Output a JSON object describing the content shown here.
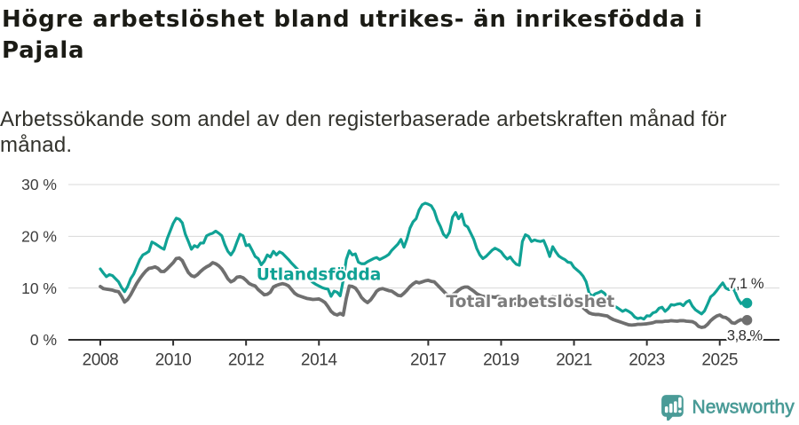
{
  "title": "Högre arbetslöshet bland utrikes- än inrikesfödda i Pajala",
  "subtitle": "Arbetssökande som andel av den registerbaserade arbetskraften månad för månad.",
  "branding": {
    "name": "Newsworthy",
    "icon": "newsworthy-speech-bubble-bar-chart-icon",
    "color": "#4a9b97"
  },
  "colors": {
    "series_foreign_born": "#10a295",
    "series_total": "#6f6f6f",
    "series_total_label": "#7c7c7c",
    "grid": "#d8d8d8",
    "axis": "#2f2f2f",
    "tick_text": "#3d3d3d",
    "annotation_text": "#2d2d2d"
  },
  "chart_data": {
    "type": "line",
    "title": "Högre arbetslöshet bland utrikes- än inrikesfödda i Pajala",
    "xlabel": "",
    "ylabel": "",
    "x_start": "2008-01",
    "x_end": "2025-10",
    "x_tick_labels": [
      "2008",
      "2010",
      "2012",
      "2014",
      "2017",
      "2019",
      "2021",
      "2023",
      "2025"
    ],
    "x_tick_years": [
      2008,
      2010,
      2012,
      2014,
      2017,
      2019,
      2021,
      2023,
      2025
    ],
    "y_tick_labels": [
      "0 %",
      "10 %",
      "20 %",
      "30 %"
    ],
    "y_tick_values": [
      0,
      10,
      20,
      30
    ],
    "ylim": [
      0,
      30
    ],
    "grid": "horizontal",
    "legend_position": "inline-labels",
    "series": [
      {
        "name": "Total arbetslöshet",
        "end_label": "3,8 %",
        "values": [
          10.3,
          9.9,
          9.8,
          9.7,
          9.6,
          9.4,
          9.3,
          8.4,
          7.3,
          7.8,
          8.7,
          9.8,
          10.9,
          11.8,
          12.6,
          13.3,
          13.8,
          13.9,
          14.1,
          13.8,
          13.2,
          13.2,
          13.7,
          14.3,
          14.9,
          15.7,
          15.8,
          15.3,
          14.1,
          13.0,
          12.4,
          12.2,
          12.6,
          13.2,
          13.7,
          14.1,
          14.4,
          14.9,
          14.7,
          14.3,
          13.7,
          12.8,
          11.8,
          11.2,
          11.5,
          12.1,
          12.2,
          12.0,
          11.5,
          10.9,
          10.6,
          10.4,
          9.7,
          9.2,
          8.7,
          8.8,
          9.2,
          10.2,
          10.5,
          10.7,
          10.85,
          10.7,
          10.4,
          9.7,
          9.0,
          8.6,
          8.4,
          8.2,
          8.0,
          7.9,
          7.8,
          7.85,
          7.9,
          7.6,
          7.2,
          6.4,
          5.5,
          5.0,
          4.8,
          5.1,
          4.8,
          8.0,
          10.4,
          10.3,
          10.0,
          9.2,
          8.2,
          7.6,
          7.2,
          7.7,
          8.5,
          9.4,
          9.8,
          9.9,
          9.7,
          9.5,
          9.4,
          9.0,
          8.6,
          8.5,
          9.0,
          9.6,
          10.3,
          10.8,
          11.2,
          11.0,
          11.2,
          11.4,
          11.5,
          11.3,
          11.2,
          10.6,
          10.0,
          9.4,
          8.8,
          8.6,
          8.7,
          9.1,
          9.6,
          10.0,
          10.2,
          10.2,
          9.8,
          9.4,
          8.9,
          8.6,
          8.4,
          8.3,
          8.5,
          8.3,
          8.2,
          8.4,
          8.2,
          7.9,
          7.6,
          7.3,
          7.0,
          6.9,
          6.7,
          6.6,
          6.8,
          7.0,
          7.1,
          7.3,
          7.2,
          7.1,
          7.4,
          7.9,
          8.1,
          8.3,
          8.2,
          8.0,
          7.8,
          7.7,
          7.6,
          7.7,
          7.4,
          7.2,
          6.8,
          6.2,
          5.7,
          5.2,
          5.0,
          4.9,
          4.9,
          4.8,
          4.7,
          4.6,
          4.2,
          3.9,
          3.7,
          3.5,
          3.3,
          3.1,
          2.9,
          2.85,
          2.9,
          3.0,
          3.0,
          3.05,
          3.1,
          3.2,
          3.3,
          3.5,
          3.5,
          3.5,
          3.6,
          3.6,
          3.7,
          3.65,
          3.6,
          3.7,
          3.7,
          3.6,
          3.55,
          3.5,
          3.2,
          2.6,
          2.4,
          2.5,
          3.0,
          3.7,
          4.2,
          4.6,
          4.8,
          4.4,
          4.3,
          3.9,
          3.3,
          3.2,
          3.6,
          3.9,
          3.7,
          3.8
        ]
      },
      {
        "name": "Utlandsfödda",
        "end_label": "7,1 %",
        "values": [
          13.7,
          12.9,
          12.2,
          12.6,
          12.4,
          11.8,
          11.2,
          10.1,
          9.3,
          10.3,
          11.8,
          12.7,
          14.1,
          15.5,
          16.4,
          16.7,
          17.1,
          18.9,
          18.6,
          18.2,
          17.8,
          17.5,
          19.5,
          21.0,
          22.5,
          23.5,
          23.3,
          22.6,
          20.4,
          19.0,
          17.5,
          18.2,
          17.9,
          18.7,
          18.7,
          20.1,
          20.4,
          20.6,
          21.0,
          20.6,
          20.1,
          18.4,
          17.1,
          16.4,
          17.3,
          18.9,
          20.4,
          20.1,
          18.2,
          18.4,
          17.3,
          16.1,
          15.7,
          14.5,
          15.2,
          16.4,
          16.0,
          17.1,
          16.4,
          17.0,
          16.7,
          16.1,
          15.5,
          14.8,
          14.2,
          13.6,
          13.1,
          12.6,
          12.1,
          11.6,
          11.1,
          10.7,
          10.4,
          10.1,
          9.9,
          9.8,
          8.4,
          9.4,
          9.2,
          8.5,
          11.5,
          15.5,
          17.2,
          16.4,
          16.6,
          15.0,
          14.7,
          14.7,
          15.1,
          15.4,
          15.7,
          15.9,
          15.5,
          15.8,
          16.1,
          16.5,
          17.3,
          17.9,
          18.5,
          19.4,
          17.9,
          19.5,
          21.6,
          22.8,
          23.4,
          25.1,
          26.1,
          26.4,
          26.2,
          25.9,
          24.9,
          23.1,
          21.9,
          20.4,
          19.8,
          20.8,
          23.7,
          24.6,
          23.4,
          24.3,
          22.2,
          21.8,
          20.6,
          19.4,
          17.6,
          16.4,
          15.7,
          16.1,
          16.7,
          17.3,
          17.7,
          17.4,
          17.0,
          16.2,
          15.6,
          16.0,
          15.2,
          14.6,
          14.4,
          19.0,
          20.3,
          20.0,
          19.0,
          19.3,
          19.1,
          19.0,
          19.2,
          17.8,
          16.1,
          18.0,
          17.0,
          16.2,
          15.8,
          15.5,
          15.0,
          14.9,
          14.0,
          13.5,
          13.0,
          12.3,
          11.2,
          9.0,
          8.4,
          8.9,
          9.1,
          9.4,
          9.0,
          8.3,
          7.5,
          6.6,
          6.3,
          5.9,
          5.5,
          5.8,
          5.5,
          5.1,
          4.4,
          4.1,
          4.25,
          4.0,
          4.65,
          4.6,
          5.2,
          5.4,
          6.1,
          6.3,
          5.5,
          6.0,
          6.8,
          6.7,
          6.9,
          7.0,
          6.6,
          7.3,
          7.6,
          6.5,
          5.8,
          5.4,
          5.0,
          5.6,
          6.9,
          8.3,
          8.8,
          9.5,
          10.3,
          11.0,
          10.0,
          9.7,
          10.4,
          9.3,
          7.9,
          7.0,
          7.4,
          7.1
        ]
      }
    ]
  }
}
